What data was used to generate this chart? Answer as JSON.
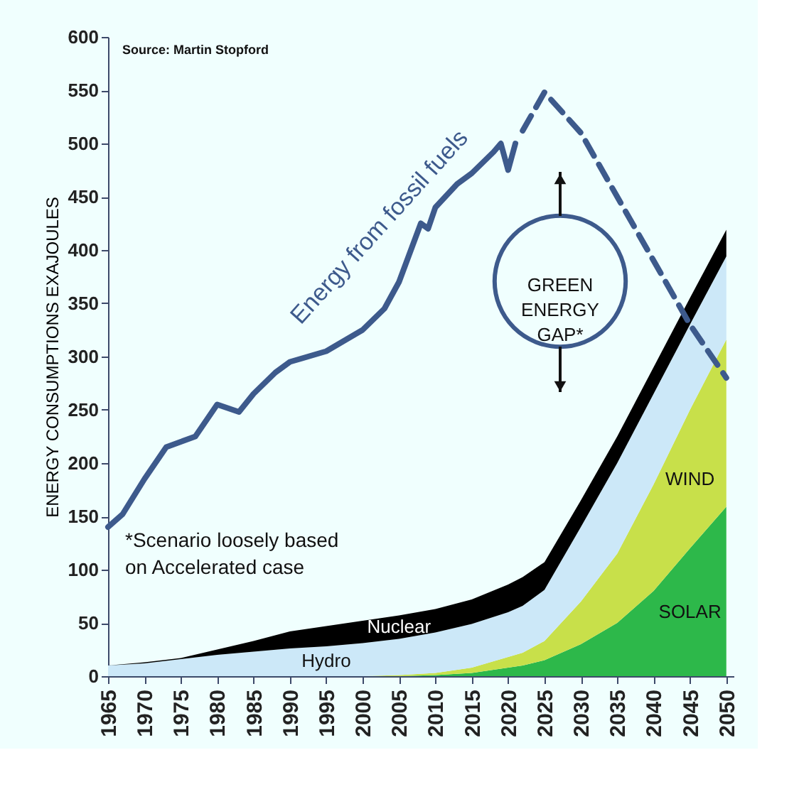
{
  "chart_data": {
    "type": "area",
    "stacked": true,
    "grid": false,
    "marker": "none",
    "ylabel": "ENERGY CONSUMPTIONS EXAJOULES",
    "annotations": [
      "Source: Martin Stopford",
      "*Scenario loosely based on Accelerated case",
      "GREEN ENERGY GAP*"
    ],
    "x": [
      1965,
      1970,
      1975,
      1980,
      1985,
      1990,
      1995,
      2000,
      2005,
      2010,
      2015,
      2020,
      2022,
      2025,
      2030,
      2035,
      2040,
      2045,
      2050
    ],
    "xlim": [
      1965,
      2051
    ],
    "xticks": [
      1965,
      1970,
      1975,
      1980,
      1985,
      1990,
      1995,
      2000,
      2005,
      2010,
      2015,
      2020,
      2025,
      2030,
      2035,
      2040,
      2045,
      2050
    ],
    "ylim": [
      0,
      600
    ],
    "yticks": [
      0,
      50,
      100,
      150,
      200,
      250,
      300,
      350,
      400,
      450,
      500,
      550,
      600
    ],
    "series": [
      {
        "name": "SOLAR",
        "color": "#2db84a",
        "values": [
          0,
          0,
          0,
          0,
          0,
          0,
          0,
          0,
          0,
          1,
          3,
          8,
          10,
          15,
          30,
          50,
          80,
          120,
          159
        ]
      },
      {
        "name": "WIND",
        "color": "#c8e04a",
        "values": [
          0,
          0,
          0,
          0,
          0,
          0,
          0,
          0,
          1,
          2,
          5,
          10,
          12,
          18,
          40,
          65,
          100,
          130,
          157
        ]
      },
      {
        "name": "Hydro",
        "color": "#cce8f8",
        "values": [
          10,
          12,
          16,
          20,
          23,
          26,
          28,
          31,
          34,
          38,
          41,
          42,
          44,
          48,
          70,
          85,
          85,
          80,
          78
        ]
      },
      {
        "name": "Nuclear",
        "color": "#000000",
        "values": [
          0,
          1,
          1,
          5,
          10,
          16,
          19,
          21,
          22,
          22,
          23,
          26,
          27,
          26,
          25,
          25,
          25,
          25,
          25
        ]
      },
      {
        "name": "Energy from fossil fuels",
        "type": "line",
        "color": "#3d5a8c",
        "line_style": "solid",
        "x": [
          1965,
          1967,
          1970,
          1973,
          1975,
          1977,
          1980,
          1983,
          1985,
          1988,
          1990,
          1995,
          2000,
          2003,
          2005,
          2008,
          2009,
          2010,
          2013,
          2015,
          2018,
          2019,
          2020,
          2021
        ],
        "values": [
          140,
          152,
          185,
          215,
          220,
          225,
          255,
          248,
          265,
          285,
          295,
          305,
          325,
          345,
          370,
          425,
          420,
          440,
          462,
          472,
          492,
          500,
          475,
          500
        ]
      },
      {
        "type": "line",
        "color": "#3d5a8c",
        "line_style": "dashed",
        "x": [
          2022,
          2025,
          2030,
          2035,
          2040,
          2045,
          2050
        ],
        "values": [
          512,
          548,
          510,
          450,
          390,
          330,
          280
        ]
      }
    ]
  }
}
